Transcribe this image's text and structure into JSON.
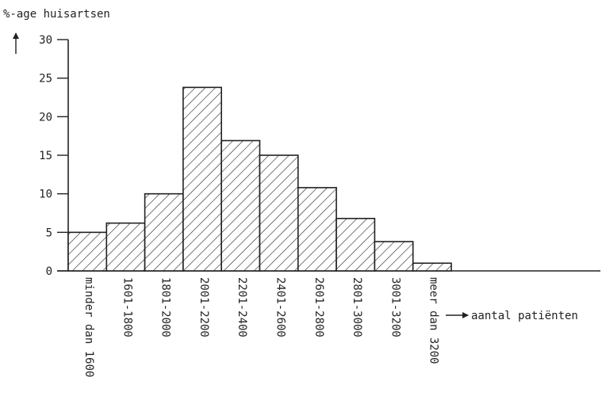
{
  "chart_data": {
    "type": "bar",
    "ylabel": "%-age huisartsen",
    "xlabel": "aantal patiënten",
    "categories": [
      "minder dan 1600",
      "1601-1800",
      "1801-2000",
      "2001-2200",
      "2201-2400",
      "2401-2600",
      "2601-2800",
      "2801-3000",
      "3001-3200",
      "meer dan 3200"
    ],
    "values": [
      5,
      6.2,
      10,
      23.8,
      16.9,
      15,
      10.8,
      6.8,
      3.8,
      1
    ],
    "ylim": [
      0,
      30
    ],
    "yticks": [
      0,
      5,
      10,
      15,
      20,
      25,
      30
    ],
    "bar_style": "diagonal-hatch",
    "grid": false,
    "legend": "none"
  }
}
